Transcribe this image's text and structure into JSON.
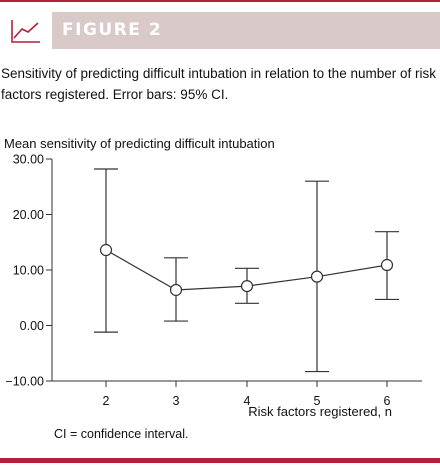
{
  "figure": {
    "label": "FIGURE 2",
    "caption": "Sensitivity of predicting difficult intubation in relation to the number of risk factors registered. Error bars: 95% CI.",
    "footnote": "CI = confidence interval.",
    "icon": "line-chart-icon"
  },
  "colors": {
    "accent": "#b0223a",
    "header_bg": "#d9c9c9",
    "marker_fill": "#ffffff",
    "line": "#333333"
  },
  "chart_data": {
    "type": "line",
    "title": "Mean sensitivity of predicting difficult intubation",
    "xlabel": "Risk factors registered, n",
    "ylabel": "",
    "ylim": [
      -10,
      30
    ],
    "y_ticks": [
      "30.00",
      "20.00",
      "10.00",
      "0.00",
      "−10.00"
    ],
    "y_tick_values": [
      30,
      20,
      10,
      0,
      -10
    ],
    "x": [
      2,
      3,
      4,
      5,
      6
    ],
    "x_tick_labels": [
      "2",
      "3",
      "4",
      "5",
      "6"
    ],
    "series": [
      {
        "values": [
          13.6,
          6.4,
          7.1,
          8.8,
          10.9
        ],
        "ci_low": [
          -1.2,
          0.8,
          4.0,
          -8.3,
          4.7
        ],
        "ci_high": [
          28.2,
          12.2,
          10.3,
          26.0,
          16.9
        ]
      }
    ],
    "grid": false
  }
}
